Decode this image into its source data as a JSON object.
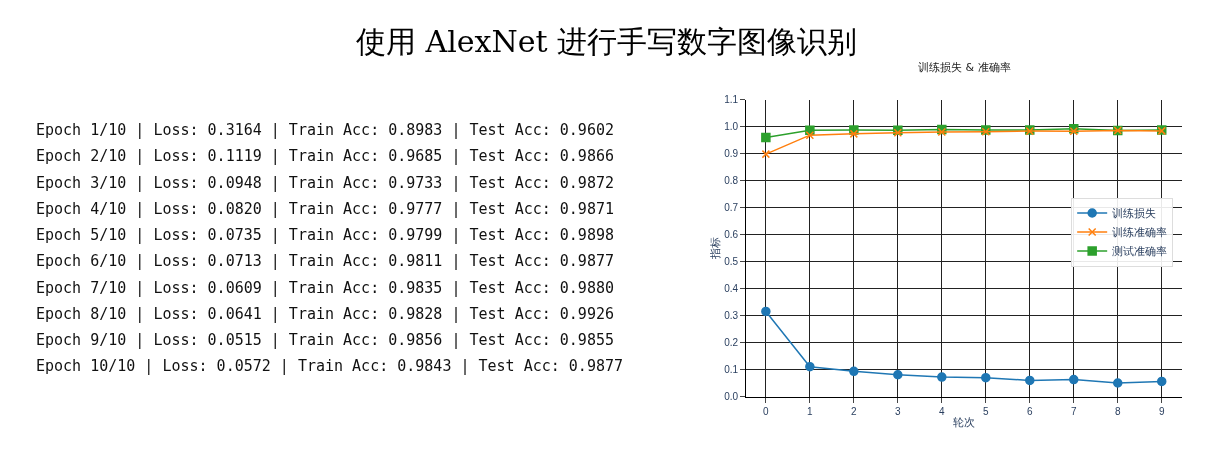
{
  "chart_data": [
    {
      "type": "other",
      "title": "使用 AlexNet 进行手写数字图像识别",
      "annotations": [
        "Epoch 1/10 | Loss: 0.3164 | Train Acc: 0.8983 | Test Acc: 0.9602",
        "Epoch 2/10 | Loss: 0.1119 | Train Acc: 0.9685 | Test Acc: 0.9866",
        "Epoch 3/10 | Loss: 0.0948 | Train Acc: 0.9733 | Test Acc: 0.9872",
        "Epoch 4/10 | Loss: 0.0820 | Train Acc: 0.9777 | Test Acc: 0.9871",
        "Epoch 5/10 | Loss: 0.0735 | Train Acc: 0.9799 | Test Acc: 0.9898",
        "Epoch 6/10 | Loss: 0.0713 | Train Acc: 0.9811 | Test Acc: 0.9877",
        "Epoch 7/10 | Loss: 0.0609 | Train Acc: 0.9835 | Test Acc: 0.9880",
        "Epoch 8/10 | Loss: 0.0641 | Train Acc: 0.9828 | Test Acc: 0.9926",
        "Epoch 9/10 | Loss: 0.0515 | Train Acc: 0.9856 | Test Acc: 0.9855",
        "Epoch 10/10 | Loss: 0.0572 | Train Acc: 0.9843 | Test Acc: 0.9877"
      ]
    },
    {
      "type": "line",
      "title": "训练损失 & 准确率",
      "xlabel": "轮次",
      "ylabel": "指标",
      "x": [
        0,
        1,
        2,
        3,
        4,
        5,
        6,
        7,
        8,
        9
      ],
      "xlim": [
        -0.45,
        9.45
      ],
      "xticks": [
        0,
        1,
        2,
        3,
        4,
        5,
        6,
        7,
        8,
        9
      ],
      "ylim": [
        0,
        1.1
      ],
      "yticks": [
        {
          "value": 0,
          "label": "0.0"
        },
        0.1,
        0.2,
        0.3,
        0.4,
        0.5,
        0.6,
        0.7,
        0.8,
        0.9,
        {
          "value": 1,
          "label": "1.0"
        },
        1.1
      ],
      "grid": true,
      "legend": "right",
      "series": [
        {
          "name": "训练损失",
          "color": "#1f77b4",
          "marker": "circle",
          "values": [
            0.3164,
            0.1119,
            0.0948,
            0.082,
            0.0735,
            0.0713,
            0.0609,
            0.0641,
            0.0515,
            0.0572
          ]
        },
        {
          "name": "训练准确率",
          "color": "#ff7f0e",
          "marker": "cross",
          "values": [
            0.8983,
            0.9685,
            0.9733,
            0.9777,
            0.9799,
            0.9811,
            0.9835,
            0.9828,
            0.9856,
            0.9843
          ]
        },
        {
          "name": "测试准确率",
          "color": "#2ca02c",
          "marker": "square",
          "values": [
            0.9602,
            0.9866,
            0.9872,
            0.9871,
            0.9898,
            0.9877,
            0.988,
            0.9926,
            0.9855,
            0.9877
          ]
        }
      ]
    }
  ]
}
